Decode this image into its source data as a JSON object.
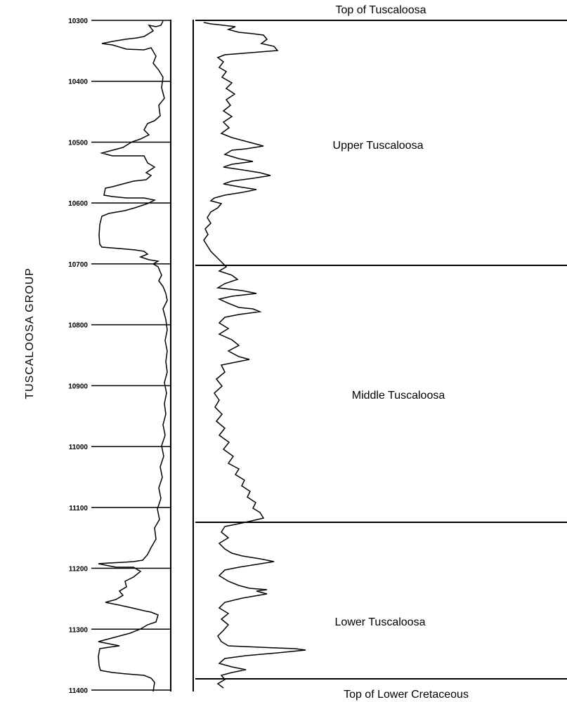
{
  "group_label": "TUSCALOOSA GROUP",
  "depth_axis": {
    "ticks": [
      "10300",
      "10400",
      "10500",
      "10600",
      "10700",
      "10800",
      "10900",
      "11000",
      "11100",
      "11200",
      "11300",
      "11400"
    ],
    "min": 10300,
    "max": 11400
  },
  "boundaries": {
    "top": {
      "label": "Top of Tuscaloosa",
      "depth": 10300
    },
    "upper_middle": {
      "depth": 10700
    },
    "middle_lower": {
      "depth": 11120
    },
    "bottom": {
      "label": "Top of Lower Cretaceous",
      "depth": 11380
    }
  },
  "zones": {
    "upper": {
      "label": "Upper Tuscaloosa"
    },
    "middle": {
      "label": "Middle Tuscaloosa"
    },
    "lower": {
      "label": "Lower Tuscaloosa"
    }
  }
}
